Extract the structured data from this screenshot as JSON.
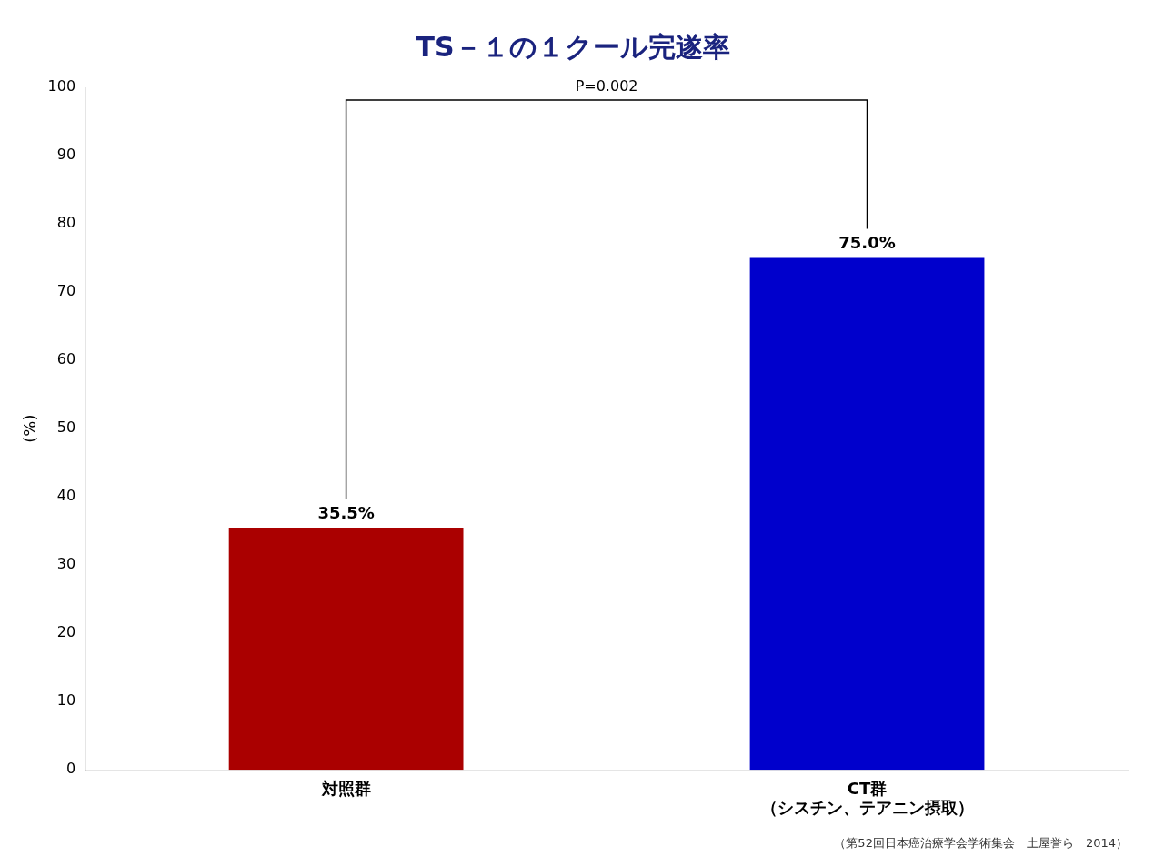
{
  "chart_data": {
    "type": "bar",
    "title": "TS－１の１クール完遂率",
    "categories": [
      "対照群",
      "CT群\n（シスチン、テアニン摂取）"
    ],
    "values": [
      35.5,
      75.0
    ],
    "value_labels": [
      "35.5%",
      "75.0%"
    ],
    "data_labels": true,
    "colors": [
      "#aa0000",
      "#0000cc"
    ],
    "ylabel": "(%)",
    "ylim": [
      0,
      100
    ],
    "yticks": [
      0,
      10,
      20,
      30,
      40,
      50,
      60,
      70,
      80,
      90,
      100
    ],
    "grid": false,
    "annotation": "P=0.002",
    "footnote": "（第52回日本癌治療学会学術集会　土屋誉ら　2014）"
  }
}
